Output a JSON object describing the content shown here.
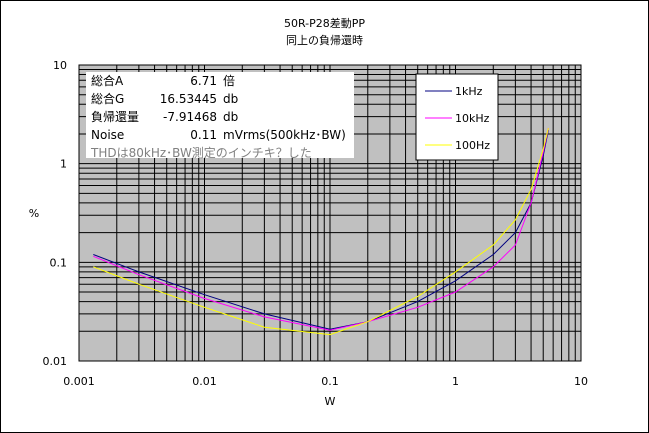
{
  "chart_data": {
    "type": "line",
    "title": "50R-P28差動PP",
    "subtitle": "同上の負帰還時",
    "xlabel": "W",
    "ylabel": "%",
    "xscale": "log",
    "yscale": "log",
    "xlim": [
      0.001,
      10
    ],
    "ylim": [
      0.01,
      10
    ],
    "x_ticks": [
      "0.001",
      "0.01",
      "0.1",
      "1",
      "10"
    ],
    "y_ticks": [
      "0.01",
      "0.1",
      "1",
      "10"
    ],
    "grid": true,
    "legend_position": "top-right",
    "series": [
      {
        "name": "1kHz",
        "color": "#000080",
        "points": [
          [
            0.0013,
            0.12
          ],
          [
            0.003,
            0.08
          ],
          [
            0.01,
            0.047
          ],
          [
            0.03,
            0.03
          ],
          [
            0.1,
            0.021
          ],
          [
            0.2,
            0.025
          ],
          [
            0.5,
            0.04
          ],
          [
            1,
            0.065
          ],
          [
            2,
            0.12
          ],
          [
            3,
            0.2
          ],
          [
            4,
            0.4
          ],
          [
            5,
            1.2
          ],
          [
            5.5,
            2.2
          ]
        ]
      },
      {
        "name": "10kHz",
        "color": "#ff00ff",
        "points": [
          [
            0.0013,
            0.115
          ],
          [
            0.003,
            0.075
          ],
          [
            0.01,
            0.043
          ],
          [
            0.03,
            0.028
          ],
          [
            0.1,
            0.0205
          ],
          [
            0.2,
            0.025
          ],
          [
            0.5,
            0.035
          ],
          [
            1,
            0.05
          ],
          [
            2,
            0.09
          ],
          [
            3,
            0.15
          ],
          [
            4,
            0.4
          ],
          [
            5,
            1.3
          ],
          [
            5.5,
            2.3
          ]
        ]
      },
      {
        "name": "100Hz",
        "color": "#ffff00",
        "points": [
          [
            0.0013,
            0.09
          ],
          [
            0.003,
            0.06
          ],
          [
            0.01,
            0.035
          ],
          [
            0.03,
            0.022
          ],
          [
            0.1,
            0.0185
          ],
          [
            0.2,
            0.025
          ],
          [
            0.5,
            0.045
          ],
          [
            1,
            0.08
          ],
          [
            2,
            0.15
          ],
          [
            3,
            0.27
          ],
          [
            4,
            0.55
          ],
          [
            5,
            1.4
          ],
          [
            5.5,
            2.3
          ]
        ]
      }
    ],
    "annotation": [
      {
        "label": "総合A",
        "value": "6.71",
        "unit": "倍"
      },
      {
        "label": "総合G",
        "value": "16.53445",
        "unit": "db"
      },
      {
        "label": "負帰還量",
        "value": "-7.91468",
        "unit": "db"
      },
      {
        "label": "Noise",
        "value": "0.11",
        "unit": "mVrms(500kHz･BW)"
      }
    ],
    "annotation_note": "THDは80kHz･BW測定のインチキ？した",
    "colors": {
      "plot_bg": "#c0c0c0",
      "grid": "#000000",
      "note_text": "#808080"
    }
  }
}
